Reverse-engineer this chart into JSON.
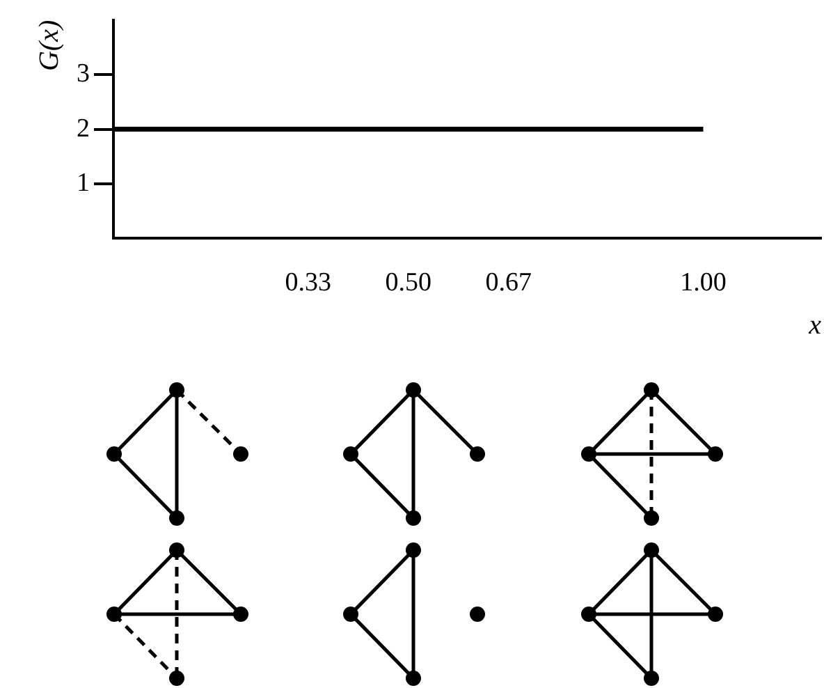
{
  "chart_data": {
    "type": "line",
    "xlabel": "x",
    "ylabel": "G(x)",
    "x": [
      0,
      1
    ],
    "series": [
      {
        "color": "#000000",
        "values": [
          2,
          2
        ]
      }
    ],
    "xlim": [
      0,
      1.2
    ],
    "xticks": [
      0.33,
      {
        "value": 0.5,
        "label": "0.50"
      },
      0.67,
      {
        "value": 1,
        "label": "1.00"
      }
    ],
    "ylim": [
      0,
      4
    ],
    "yticks": [
      1,
      2,
      3
    ],
    "grid": false,
    "legend": false,
    "marker": "none",
    "line_style": "solid"
  }
}
